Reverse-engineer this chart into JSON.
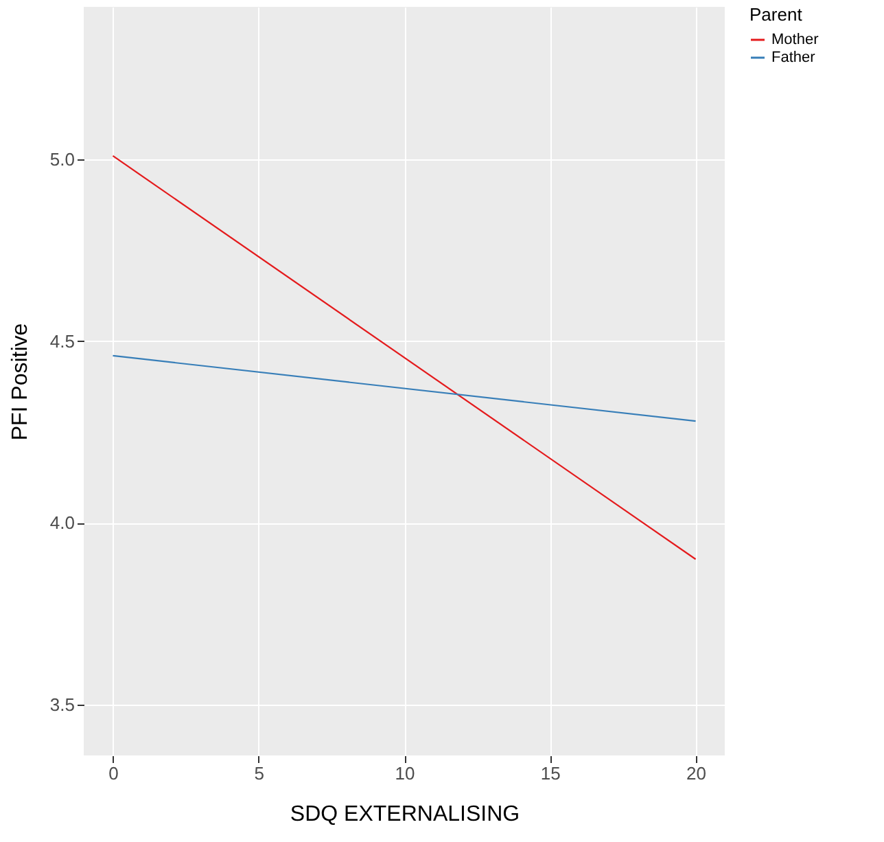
{
  "chart_data": {
    "type": "line",
    "xlabel": "SDQ EXTERNALISING",
    "ylabel": "PFI Positive",
    "legend_title": "Parent",
    "legend": "right",
    "x": [
      0,
      20
    ],
    "series": [
      {
        "name": "Mother",
        "color": "#e41a1c",
        "values": [
          5.01,
          3.9
        ]
      },
      {
        "name": "Father",
        "color": "#377eb8",
        "values": [
          4.46,
          4.28
        ]
      }
    ],
    "xlim": [
      -1,
      21
    ],
    "ylim": [
      3.36,
      5.42
    ],
    "xticks": [
      0,
      5,
      10,
      15,
      20
    ],
    "yticks": [
      3.5,
      {
        "value": 4,
        "label": "4.0"
      },
      4.5,
      {
        "value": 5,
        "label": "5.0"
      }
    ],
    "grid": true,
    "marker": "none",
    "line_style": "solid"
  }
}
